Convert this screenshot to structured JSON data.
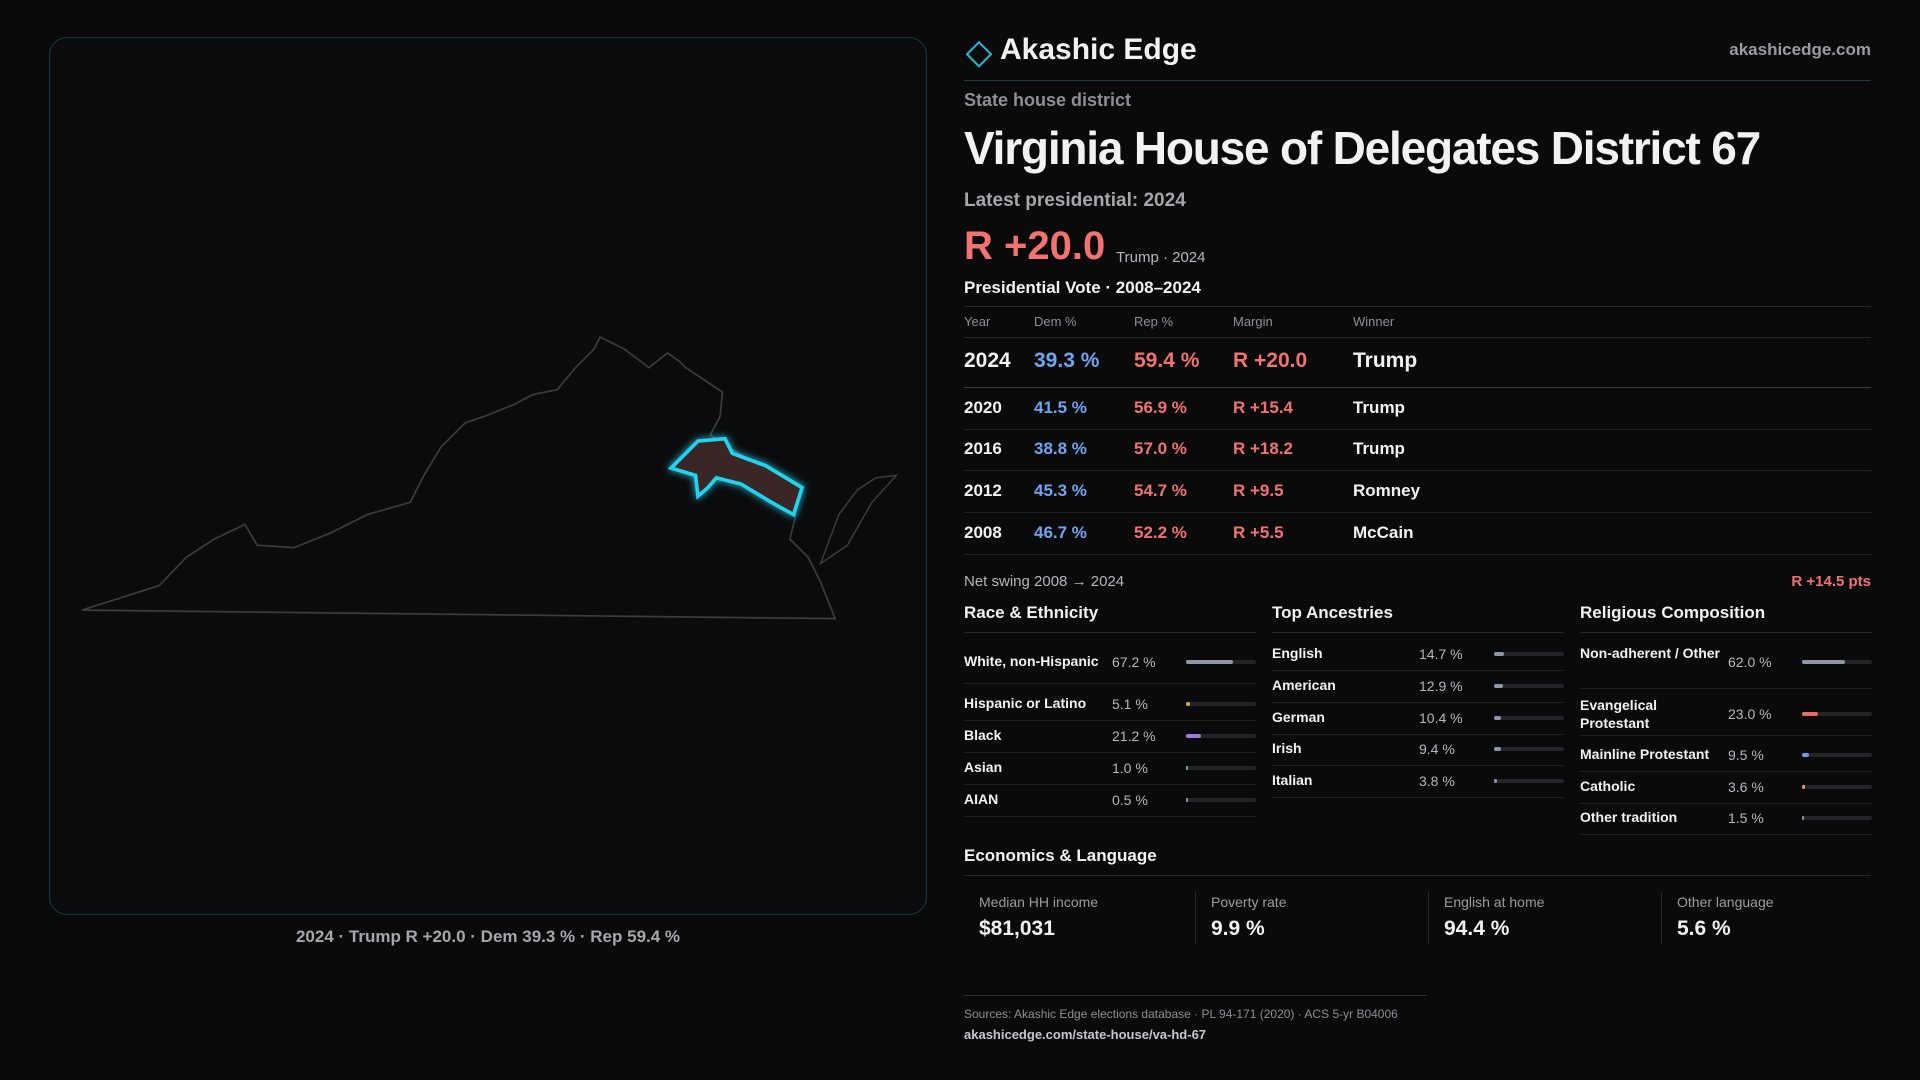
{
  "header": {
    "brand": "Akashic Edge",
    "site": "akashicedge.com"
  },
  "district": {
    "kind": "State house district",
    "title": "Virginia House of Delegates District 67"
  },
  "latest": {
    "label": "Latest presidential: 2024",
    "margin": "R +20.0",
    "detail": "Trump · 2024"
  },
  "table": {
    "title": "Presidential Vote · 2008–2024",
    "columns": [
      "Year",
      "Dem %",
      "Rep %",
      "Margin",
      "Winner"
    ],
    "rows": [
      [
        "2024",
        "39.3 %",
        "59.4 %",
        "R +20.0",
        "Trump"
      ],
      [
        "2020",
        "41.5 %",
        "56.9 %",
        "R +15.4",
        "Trump"
      ],
      [
        "2016",
        "38.8 %",
        "57.0 %",
        "R +18.2",
        "Trump"
      ],
      [
        "2012",
        "45.3 %",
        "54.7 %",
        "R +9.5",
        "Romney"
      ],
      [
        "2008",
        "46.7 %",
        "52.2 %",
        "R +5.5",
        "McCain"
      ]
    ]
  },
  "net_swing": {
    "label": "Net swing 2008 → 2024",
    "value": "R +14.5 pts"
  },
  "sections": [
    {
      "title": "Race & Ethnicity",
      "items": [
        {
          "name": "White, non-Hispanic",
          "value": 67.2,
          "label": "67.2 %",
          "color": "#8e97aa"
        },
        {
          "name": "Hispanic or Latino",
          "value": 5.1,
          "label": "5.1 %",
          "color": "#e6a23c"
        },
        {
          "name": "Black",
          "value": 21.2,
          "label": "21.2 %",
          "color": "#9b7de2"
        },
        {
          "name": "Asian",
          "value": 1.0,
          "label": "1.0 %",
          "color": "#5cb98c"
        },
        {
          "name": "AIAN",
          "value": 0.5,
          "label": "0.5 %",
          "color": "#8e97aa"
        }
      ]
    },
    {
      "title": "Top Ancestries",
      "items": [
        {
          "name": "English",
          "value": 14.7,
          "label": "14.7 %",
          "color": "#8e97aa"
        },
        {
          "name": "American",
          "value": 12.9,
          "label": "12.9 %",
          "color": "#8e97aa"
        },
        {
          "name": "German",
          "value": 10.4,
          "label": "10.4 %",
          "color": "#8e97aa"
        },
        {
          "name": "Irish",
          "value": 9.4,
          "label": "9.4 %",
          "color": "#8e97aa"
        },
        {
          "name": "Italian",
          "value": 3.8,
          "label": "3.8 %",
          "color": "#8e97aa"
        }
      ]
    },
    {
      "title": "Religious Composition",
      "items": [
        {
          "name": "Non-adherent / Other",
          "value": 62.0,
          "label": "62.0 %",
          "color": "#8e97aa"
        },
        {
          "name": "Evangelical Protestant",
          "value": 23.0,
          "label": "23.0 %",
          "color": "#e86a6a"
        },
        {
          "name": "Mainline Protestant",
          "value": 9.5,
          "label": "9.5 %",
          "color": "#6a9be8"
        },
        {
          "name": "Catholic",
          "value": 3.6,
          "label": "3.6 %",
          "color": "#e6a23c"
        },
        {
          "name": "Other tradition",
          "value": 1.5,
          "label": "1.5 %",
          "color": "#8e97aa"
        }
      ]
    }
  ],
  "economics": {
    "title": "Economics & Language",
    "cards": [
      {
        "label": "Median HH income",
        "value": "$81,031"
      },
      {
        "label": "Poverty rate",
        "value": "9.9 %"
      },
      {
        "label": "English at home",
        "value": "94.4 %"
      },
      {
        "label": "Other language",
        "value": "5.6 %"
      }
    ]
  },
  "map_caption": "2024 · Trump R +20.0 · Dem 39.3 % · Rep 59.4 %",
  "footer": {
    "sources": "Sources: Akashic Edge elections database · PL 94-171 (2020) · ACS 5-yr B04006",
    "url": "akashicedge.com/state-house/va-hd-67"
  }
}
